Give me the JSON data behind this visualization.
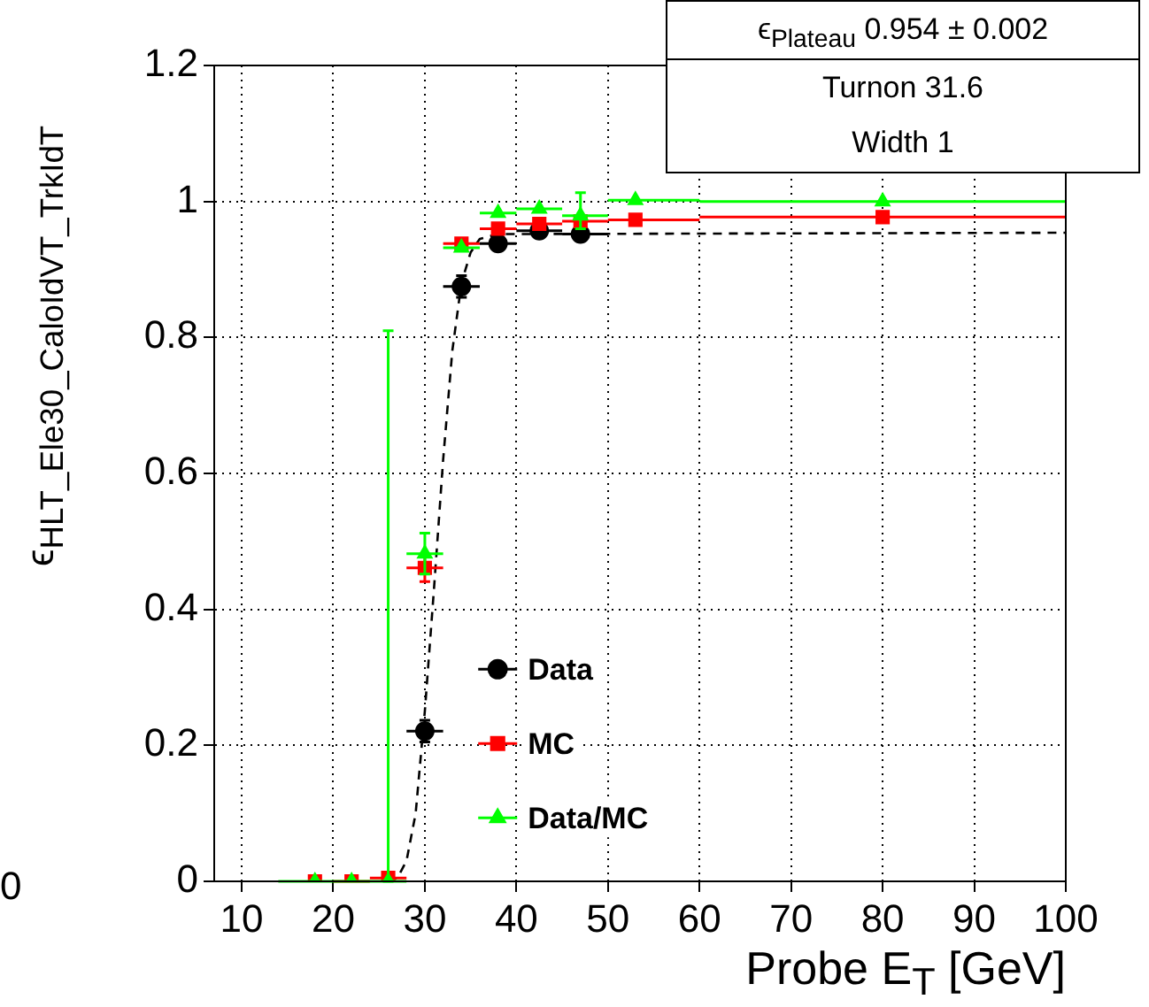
{
  "chart_data": {
    "type": "scatter",
    "xlabel": "Probe E$_{T}$ [GeV]",
    "ylabel": "ϵ$_{HLT_Ele30_CaloIdVT_TrkIdT}$",
    "xlim": [
      7,
      100
    ],
    "xticks": [
      10,
      20,
      30,
      40,
      50,
      60,
      70,
      80,
      90,
      100
    ],
    "ylim": [
      0,
      1.2
    ],
    "yticks": [
      0,
      0.2,
      0.4,
      0.6,
      0.8,
      1,
      1.2
    ],
    "grid": true,
    "legend": "bottom",
    "annotations": [
      "ϵ$_{Plateau}$  0.954 ± 0.002",
      "Turnon  31.6",
      "Width  1",
      "0"
    ],
    "series": [
      {
        "type": "line",
        "color": "#000000",
        "marker": "none",
        "line_style": "dashed",
        "x": [
          26,
          27,
          28,
          29,
          30,
          31,
          32,
          33,
          34,
          35,
          36,
          38,
          100
        ],
        "values": [
          0,
          0.005,
          0.03,
          0.1,
          0.25,
          0.43,
          0.62,
          0.78,
          0.88,
          0.925,
          0.945,
          0.952,
          0.954
        ]
      },
      {
        "name": "Data",
        "color": "#000000",
        "marker": "circle",
        "x": [
          30,
          34,
          38,
          42.5,
          47
        ],
        "values": [
          0.221,
          0.875,
          0.938,
          0.957,
          0.952
        ],
        "errors": [
          0.016,
          0.016,
          null,
          null,
          null
        ],
        "xerrors": [
          [
            28,
            32
          ],
          [
            32,
            36
          ],
          [
            36,
            40
          ],
          [
            40,
            45
          ],
          [
            45,
            50
          ]
        ]
      },
      {
        "name": "MC",
        "color": "#ff0000",
        "marker": "square",
        "x": [
          18,
          22,
          26,
          30,
          34,
          38,
          42.5,
          47,
          53,
          80
        ],
        "values": [
          0,
          0,
          0.005,
          0.461,
          0.938,
          0.96,
          0.967,
          0.971,
          0.973,
          0.977
        ],
        "errors": [
          null,
          null,
          null,
          0.02,
          null,
          null,
          null,
          null,
          null,
          null
        ],
        "xerrors": [
          null,
          [
            20,
            24
          ],
          [
            24,
            28
          ],
          [
            28,
            32
          ],
          [
            32,
            36
          ],
          [
            36,
            40
          ],
          [
            40,
            45
          ],
          [
            45,
            50
          ],
          [
            50,
            60
          ],
          [
            60,
            100
          ]
        ]
      },
      {
        "name": "Data/MC",
        "color": "#00ff00",
        "marker": "triangle",
        "x": [
          18,
          22,
          26,
          30,
          34,
          38,
          42.5,
          47,
          53,
          80
        ],
        "values": [
          0,
          0,
          0,
          0.482,
          0.932,
          0.983,
          0.989,
          0.979,
          1.002,
          1.0
        ],
        "errors": [
          null,
          null,
          [
            0,
            0.81
          ],
          0.03,
          null,
          null,
          null,
          [
            0.96,
            1.013
          ],
          null,
          null
        ],
        "xerrors": [
          [
            14,
            20
          ],
          [
            20,
            24
          ],
          [
            24,
            28
          ],
          [
            28,
            32
          ],
          [
            32,
            36
          ],
          [
            36,
            40
          ],
          [
            40,
            45
          ],
          [
            45,
            50
          ],
          [
            50,
            60
          ],
          [
            60,
            100
          ]
        ]
      }
    ]
  }
}
